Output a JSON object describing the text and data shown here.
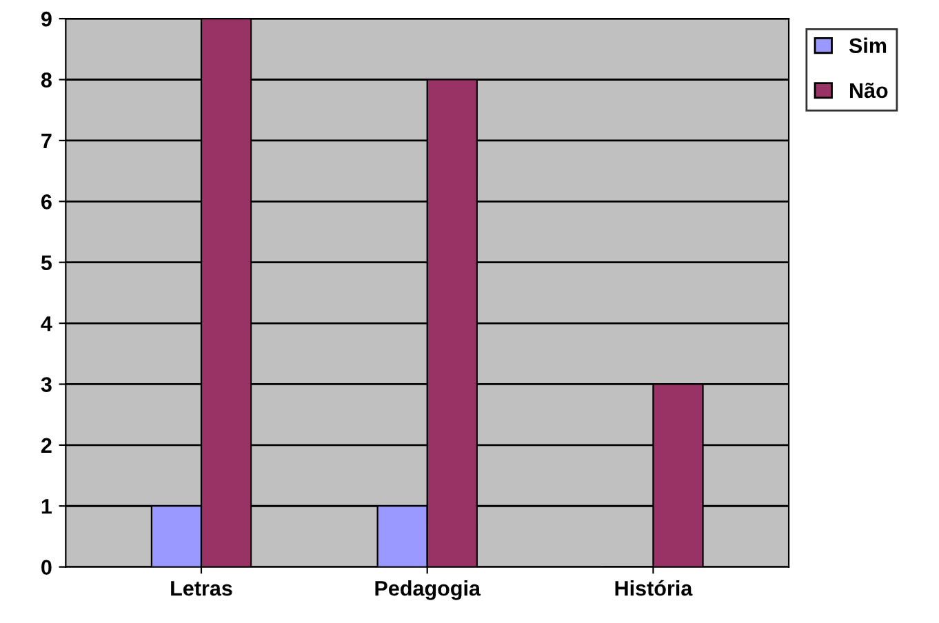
{
  "chart_data": {
    "type": "bar",
    "categories": [
      "Letras",
      "Pedagogia",
      "História"
    ],
    "series": [
      {
        "name": "Sim",
        "color": "#9999ff",
        "values": [
          1,
          1,
          0
        ]
      },
      {
        "name": "Não",
        "color": "#993366",
        "values": [
          9,
          8,
          3
        ]
      }
    ],
    "ylim": [
      0,
      9
    ],
    "yticks": [
      0,
      1,
      2,
      3,
      4,
      5,
      6,
      7,
      8,
      9
    ],
    "grid": "y",
    "legend": "top right"
  }
}
